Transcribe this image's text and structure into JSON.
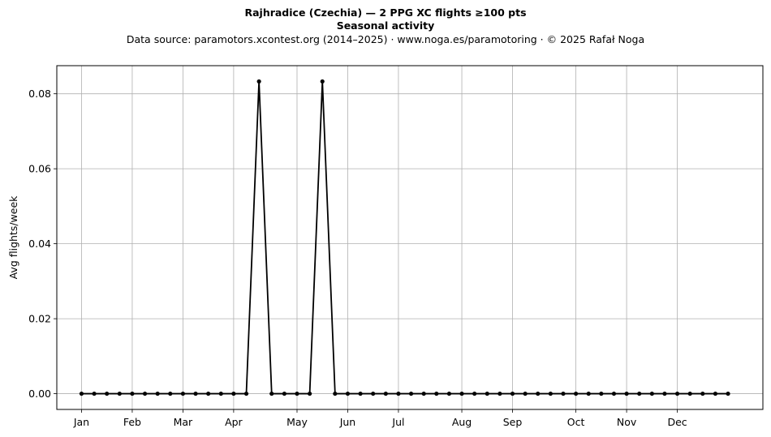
{
  "chart_data": {
    "type": "line",
    "title": "Rajhradice (Czechia)  —  2 PPG XC flights ≥100 pts",
    "title_line2": "Seasonal activity",
    "subtitle": "Data source: paramotors.xcontest.org (2014–2025)  ·  www.noga.es/paramotoring  ·  © 2025 Rafał Noga",
    "xlabel": "",
    "ylabel": "Avg flights/week",
    "x": [
      1,
      2,
      3,
      4,
      5,
      6,
      7,
      8,
      9,
      10,
      11,
      12,
      13,
      14,
      15,
      16,
      17,
      18,
      19,
      20,
      21,
      22,
      23,
      24,
      25,
      26,
      27,
      28,
      29,
      30,
      31,
      32,
      33,
      34,
      35,
      36,
      37,
      38,
      39,
      40,
      41,
      42,
      43,
      44,
      45,
      46,
      47,
      48,
      49,
      50,
      51,
      52
    ],
    "series": [
      {
        "values": [
          0,
          0,
          0,
          0,
          0,
          0,
          0,
          0,
          0,
          0,
          0,
          0,
          0,
          0,
          0.0833,
          0,
          0,
          0,
          0,
          0.0833,
          0,
          0,
          0,
          0,
          0,
          0,
          0,
          0,
          0,
          0,
          0,
          0,
          0,
          0,
          0,
          0,
          0,
          0,
          0,
          0,
          0,
          0,
          0,
          0,
          0,
          0,
          0,
          0,
          0,
          0,
          0,
          0
        ],
        "color": "#000000"
      }
    ],
    "xticks": [
      {
        "week": 1,
        "label": "Jan"
      },
      {
        "week": 5,
        "label": "Feb"
      },
      {
        "week": 9,
        "label": "Mar"
      },
      {
        "week": 13,
        "label": "Apr"
      },
      {
        "week": 18,
        "label": "May"
      },
      {
        "week": 22,
        "label": "Jun"
      },
      {
        "week": 26,
        "label": "Jul"
      },
      {
        "week": 31,
        "label": "Aug"
      },
      {
        "week": 35,
        "label": "Sep"
      },
      {
        "week": 40,
        "label": "Oct"
      },
      {
        "week": 44,
        "label": "Nov"
      },
      {
        "week": 48,
        "label": "Dec"
      }
    ],
    "yticks": [
      {
        "value": 0.0,
        "label": "0.00"
      },
      {
        "value": 0.02,
        "label": "0.02"
      },
      {
        "value": 0.04,
        "label": "0.04"
      },
      {
        "value": 0.06,
        "label": "0.06"
      },
      {
        "value": 0.08,
        "label": "0.08"
      }
    ],
    "xlim": [
      -0.95,
      54.75
    ],
    "ylim": [
      -0.0042,
      0.0875
    ],
    "grid": true
  }
}
